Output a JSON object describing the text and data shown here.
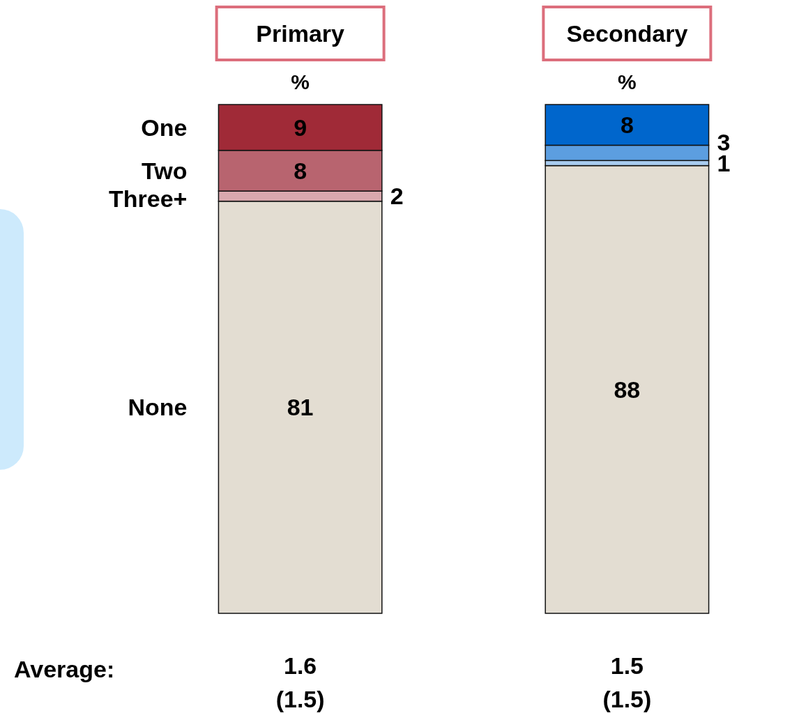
{
  "chart_data": {
    "type": "bar",
    "stacked": true,
    "data_labels": true,
    "legend": "left",
    "ylabel": "%",
    "categories": [
      "Primary",
      "Secondary"
    ],
    "series": [
      {
        "name": "None",
        "colors": [
          "#e3ddd2",
          "#e3ddd2"
        ],
        "values": [
          81,
          88
        ]
      },
      {
        "name": "Three+",
        "colors": [
          "#d9a8ae",
          "#a8ccf0"
        ],
        "values": [
          2,
          1
        ]
      },
      {
        "name": "Two",
        "colors": [
          "#b8646f",
          "#5c9ee0"
        ],
        "values": [
          8,
          3
        ]
      },
      {
        "name": "One",
        "colors": [
          "#a02a37",
          "#0066cc"
        ],
        "values": [
          9,
          8
        ]
      }
    ],
    "annotations": [
      "Average:",
      "1.6",
      "(1.5)",
      "1.5",
      "(1.5)"
    ]
  }
}
